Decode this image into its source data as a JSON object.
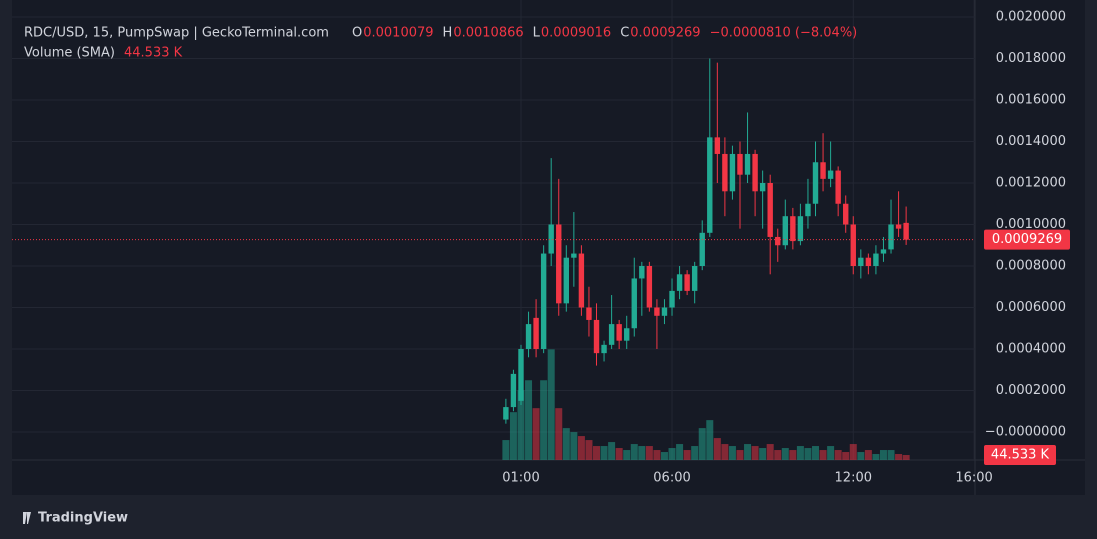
{
  "chart_data": {
    "type": "candlestick",
    "header": {
      "symbol": "RDC/USD, 15, PumpSwap | GeckoTerminal.com",
      "ohlc_letters": [
        "O",
        "H",
        "L",
        "C"
      ],
      "change": "−0.0000810 (−8.04%)",
      "volume_title": "Volume (SMA)",
      "volume_last_label": "44.533 K"
    },
    "footer": "TradingView",
    "up_color": "#22ab94",
    "down_color": "#f23645",
    "x": [
      0.5,
      0.75,
      1,
      1.25,
      1.5,
      1.75,
      2,
      2.25,
      2.5,
      2.75,
      3,
      3.25,
      3.5,
      3.75,
      4,
      4.25,
      4.5,
      4.75,
      5,
      5.25,
      5.5,
      5.75,
      6,
      6.25,
      6.5,
      6.75,
      7,
      7.25,
      7.5,
      7.75,
      8,
      8.25,
      8.5,
      8.75,
      9,
      9.25,
      9.5,
      9.75,
      10,
      10.25,
      10.5,
      10.75,
      11,
      11.25,
      11.5,
      11.75,
      12,
      12.25,
      12.5,
      12.75,
      13,
      13.25,
      13.5,
      13.75
    ],
    "open": [
      6e-05,
      0.00012,
      0.00015,
      0.0004,
      0.00055,
      0.0004,
      0.00086,
      0.001,
      0.00062,
      0.00084,
      0.00086,
      0.0006,
      0.00054,
      0.00038,
      0.00042,
      0.00052,
      0.00044,
      0.0005,
      0.00074,
      0.0008,
      0.0006,
      0.00056,
      0.0006,
      0.00068,
      0.00076,
      0.00068,
      0.0008,
      0.00096,
      0.00142,
      0.00134,
      0.00116,
      0.00134,
      0.00124,
      0.00134,
      0.00116,
      0.0012,
      0.00094,
      0.0009,
      0.00104,
      0.00092,
      0.00104,
      0.0011,
      0.0013,
      0.00122,
      0.00126,
      0.0011,
      0.001,
      0.0008,
      0.00084,
      0.0008,
      0.00086,
      0.00088,
      0.001,
      0.0010079
    ],
    "high": [
      0.00016,
      0.0003,
      0.00042,
      0.00058,
      0.00064,
      0.0009,
      0.00132,
      0.00122,
      0.0009,
      0.00106,
      0.0009,
      0.0007,
      0.00062,
      0.00044,
      0.00066,
      0.00054,
      0.00056,
      0.00084,
      0.00082,
      0.00082,
      0.00064,
      0.00064,
      0.00074,
      0.0008,
      0.00078,
      0.00082,
      0.00102,
      0.0018,
      0.00178,
      0.00142,
      0.00138,
      0.0014,
      0.00154,
      0.00136,
      0.00126,
      0.00124,
      0.00098,
      0.00112,
      0.00108,
      0.0011,
      0.00122,
      0.0014,
      0.00144,
      0.0014,
      0.00128,
      0.00114,
      0.00104,
      0.00088,
      0.00086,
      0.0009,
      0.00094,
      0.00112,
      0.00116,
      0.0010866
    ],
    "low": [
      4e-05,
      0.0001,
      0.00013,
      0.00036,
      0.00036,
      0.00038,
      0.0008,
      0.00056,
      0.00058,
      0.0007,
      0.00056,
      0.00046,
      0.00032,
      0.00034,
      0.0004,
      0.0004,
      0.0004,
      0.00046,
      0.00056,
      0.00058,
      0.0004,
      0.00052,
      0.00056,
      0.00064,
      0.00066,
      0.00062,
      0.00078,
      0.00094,
      0.0012,
      0.00104,
      0.00112,
      0.00098,
      0.0012,
      0.00104,
      0.00098,
      0.00076,
      0.00082,
      0.00088,
      0.00088,
      0.0009,
      0.00098,
      0.00104,
      0.00116,
      0.00118,
      0.00104,
      0.00096,
      0.00076,
      0.00074,
      0.00076,
      0.00076,
      0.00082,
      0.00086,
      0.00094,
      0.0009016
    ],
    "close": [
      0.00012,
      0.00028,
      0.0004,
      0.00052,
      0.0004,
      0.00086,
      0.001,
      0.00062,
      0.00084,
      0.00086,
      0.0006,
      0.00054,
      0.00038,
      0.00042,
      0.00052,
      0.00044,
      0.0005,
      0.00074,
      0.0008,
      0.0006,
      0.00056,
      0.0006,
      0.00068,
      0.00076,
      0.00068,
      0.0008,
      0.00096,
      0.00142,
      0.00134,
      0.00116,
      0.00134,
      0.00124,
      0.00134,
      0.00116,
      0.0012,
      0.00094,
      0.0009,
      0.00104,
      0.00092,
      0.00104,
      0.0011,
      0.0013,
      0.00122,
      0.00126,
      0.0011,
      0.001,
      0.0008,
      0.00084,
      0.0008,
      0.00086,
      0.00088,
      0.001,
      0.00098,
      0.0009269
    ],
    "volume": [
      178000,
      427200,
      623000,
      712000,
      462800,
      712000,
      987900,
      462800,
      284800,
      249200,
      213600,
      178000,
      124600,
      124600,
      160200,
      106800,
      89000,
      142400,
      124600,
      124600,
      89000,
      71200,
      106800,
      142400,
      89000,
      124600,
      284800,
      356000,
      195800,
      142400,
      124600,
      89000,
      142400,
      124600,
      106800,
      142400,
      89000,
      106800,
      89000,
      124600,
      106800,
      124600,
      89000,
      124600,
      89000,
      71200,
      142400,
      71200,
      89000,
      53400,
      89000,
      89000,
      53400,
      44533
    ],
    "volume_ylim": [
      0,
      1000000
    ],
    "xlim": [
      -15.85,
      16.03
    ],
    "xticks": [
      {
        "value": 1,
        "label": "01:00"
      },
      {
        "value": 6,
        "label": "06:00"
      },
      {
        "value": 12,
        "label": "12:00"
      },
      {
        "value": 16,
        "label": "16:00"
      }
    ],
    "ylim": [
      -0.000135,
      0.002082
    ],
    "yticks": [
      {
        "value": 0,
        "label": "−0.0000000"
      },
      {
        "value": 0.0002,
        "label": "0.0002000"
      },
      {
        "value": 0.0004,
        "label": "0.0004000"
      },
      {
        "value": 0.0006,
        "label": "0.0006000"
      },
      {
        "value": 0.0008,
        "label": "0.0008000"
      },
      {
        "value": 0.001,
        "label": "0.0010000"
      },
      {
        "value": 0.0012,
        "label": "0.0012000"
      },
      {
        "value": 0.0014,
        "label": "0.0014000"
      },
      {
        "value": 0.0016,
        "label": "0.0016000"
      },
      {
        "value": 0.0018,
        "label": "0.0018000"
      },
      {
        "value": 0.002,
        "label": "0.0020000"
      }
    ],
    "grid": true
  }
}
